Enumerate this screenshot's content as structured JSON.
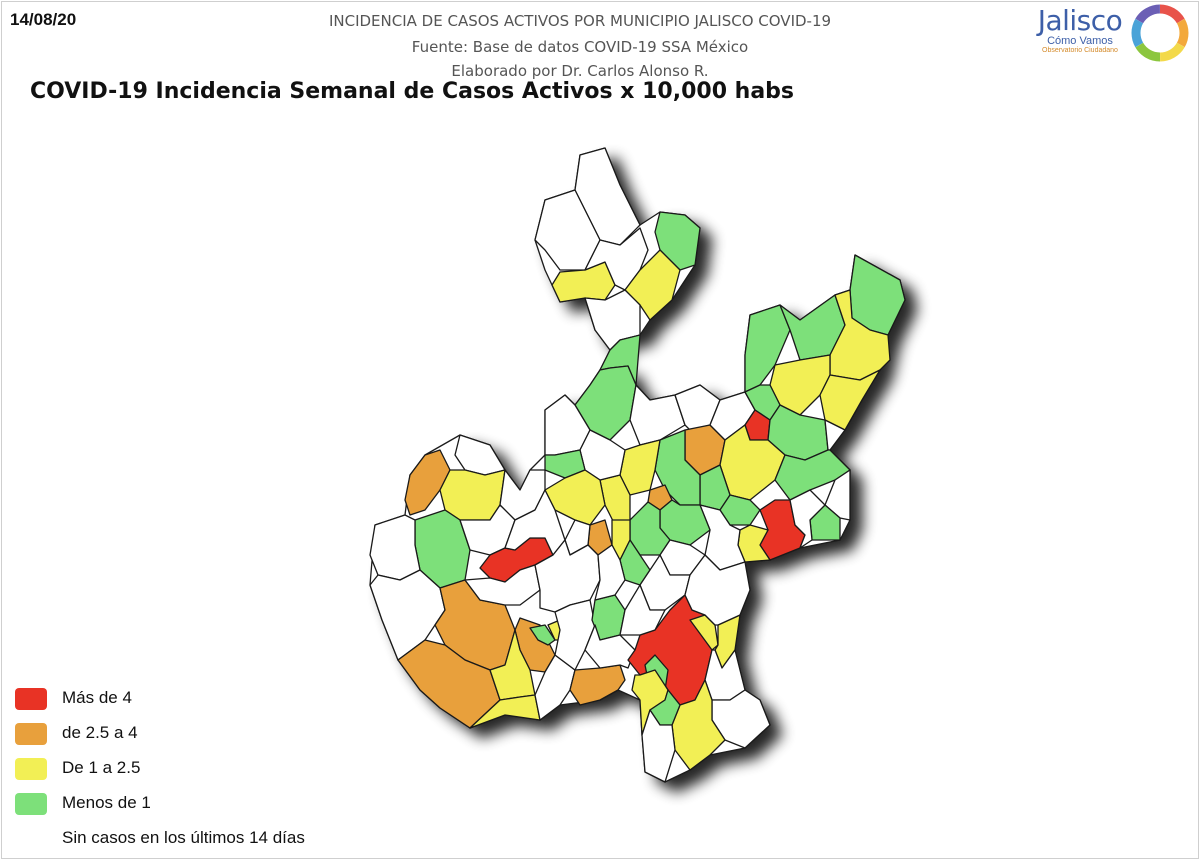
{
  "header": {
    "date": "14/08/20",
    "line1": "INCIDENCIA DE CASOS ACTIVOS POR MUNICIPIO JALISCO COVID-19",
    "line2": "Fuente: Base de datos COVID-19 SSA México",
    "line3": "Elaborado por Dr. Carlos Alonso R.",
    "title": "COVID-19 Incidencia Semanal de Casos Activos x 10,000 habs"
  },
  "logo": {
    "name": "Jalisco",
    "subtitle": "Cómo Vamos",
    "tagline": "Observatorio Ciudadano",
    "ring_colors": [
      "#e8534a",
      "#f3a93c",
      "#f3d94a",
      "#8cc63f",
      "#4aa3d8",
      "#6b5fb5"
    ]
  },
  "legend": {
    "items": [
      {
        "label": "Más de 4",
        "color": "#e83325"
      },
      {
        "label": "de 2.5 a 4",
        "color": "#e8a03c"
      },
      {
        "label": "De 1 a 2.5",
        "color": "#f2ef55"
      },
      {
        "label": "Menos de 1",
        "color": "#7de07a"
      },
      {
        "label": "Sin casos en los últimos 14 días",
        "color": "#ffffff"
      }
    ]
  },
  "map": {
    "region": "Jalisco",
    "outline_color": "#1a1a1a",
    "shadow_color": "#000000"
  }
}
